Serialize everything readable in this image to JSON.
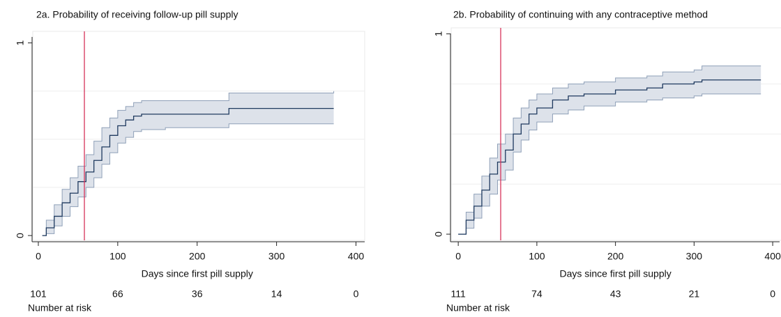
{
  "chart_data": [
    {
      "type": "km",
      "title": "2a. Probability of receiving follow-up pill supply",
      "x_label": "Days since first pill supply",
      "x": [
        5,
        10,
        20,
        30,
        40,
        50,
        60,
        70,
        80,
        90,
        100,
        110,
        120,
        130,
        160,
        240,
        372
      ],
      "values": [
        0,
        0.04,
        0.1,
        0.17,
        0.22,
        0.28,
        0.33,
        0.39,
        0.46,
        0.52,
        0.57,
        0.6,
        0.62,
        0.63,
        0.63,
        0.66,
        0.66
      ],
      "ci_lower": [
        0,
        0.01,
        0.05,
        0.1,
        0.15,
        0.2,
        0.25,
        0.3,
        0.37,
        0.43,
        0.48,
        0.51,
        0.54,
        0.55,
        0.56,
        0.58,
        0.58
      ],
      "ci_upper": [
        0,
        0.08,
        0.16,
        0.24,
        0.3,
        0.36,
        0.42,
        0.49,
        0.56,
        0.61,
        0.65,
        0.67,
        0.69,
        0.7,
        0.7,
        0.74,
        0.75
      ],
      "color": "#1f3a5f",
      "band_color": "#dde2ea",
      "band_edge_color": "#8fa0b8",
      "vline": 58,
      "vline_color": "#d6335a",
      "xlim": [
        -7,
        411
      ],
      "ylim": [
        -0.025,
        1.06
      ],
      "xticks": [
        0,
        100,
        200,
        300,
        400
      ],
      "yticks": [
        0,
        1
      ],
      "ygrid": [
        0.25,
        0.5,
        0.75
      ],
      "risk_label": "Number at risk",
      "risk_x": [
        0,
        100,
        200,
        300,
        400
      ],
      "risk_values": [
        101,
        66,
        36,
        14,
        0
      ]
    },
    {
      "type": "km",
      "title": "2b. Probability of continuing with any contraceptive method",
      "x_label": "Days since first pill supply",
      "x": [
        0,
        10,
        20,
        30,
        40,
        50,
        60,
        70,
        80,
        90,
        100,
        120,
        140,
        160,
        200,
        240,
        260,
        300,
        310,
        385
      ],
      "values": [
        0,
        0.07,
        0.14,
        0.22,
        0.3,
        0.36,
        0.42,
        0.5,
        0.55,
        0.6,
        0.63,
        0.67,
        0.69,
        0.7,
        0.72,
        0.73,
        0.75,
        0.76,
        0.77,
        0.77
      ],
      "ci_lower": [
        0,
        0.03,
        0.08,
        0.14,
        0.2,
        0.27,
        0.32,
        0.41,
        0.47,
        0.52,
        0.56,
        0.6,
        0.62,
        0.64,
        0.66,
        0.67,
        0.68,
        0.69,
        0.7,
        0.7
      ],
      "ci_upper": [
        0,
        0.11,
        0.2,
        0.29,
        0.38,
        0.45,
        0.5,
        0.58,
        0.63,
        0.67,
        0.7,
        0.73,
        0.75,
        0.76,
        0.78,
        0.79,
        0.81,
        0.82,
        0.84,
        0.84
      ],
      "color": "#1f3a5f",
      "band_color": "#dde2ea",
      "band_edge_color": "#8fa0b8",
      "vline": 54,
      "vline_color": "#d6335a",
      "xlim": [
        -9,
        415
      ],
      "ylim": [
        -0.031,
        1.03
      ],
      "xticks": [
        0,
        100,
        200,
        300,
        400
      ],
      "yticks": [
        0,
        1
      ],
      "ygrid": [
        0.25,
        0.5,
        0.75
      ],
      "risk_label": "Number at risk",
      "risk_x": [
        0,
        100,
        200,
        300,
        400
      ],
      "risk_values": [
        111,
        74,
        43,
        21,
        0
      ]
    }
  ]
}
